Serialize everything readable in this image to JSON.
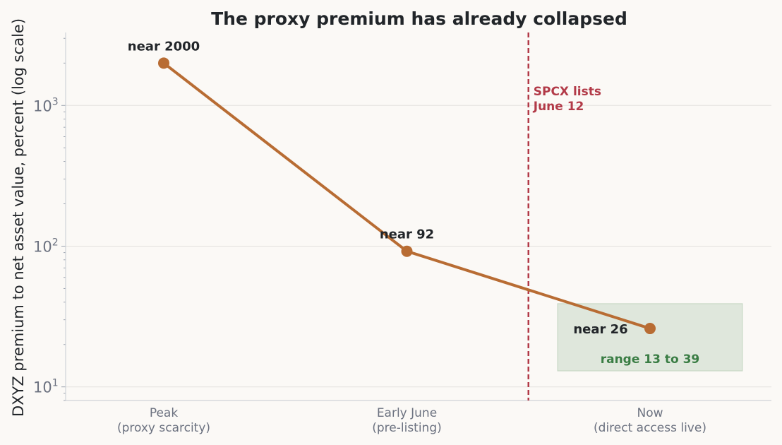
{
  "chart_data": {
    "type": "line",
    "title": "The proxy premium has already collapsed",
    "ylabel": "DXYZ premium to net asset value, percent (log scale)",
    "xlabel": "",
    "categories": [
      "Peak\n(proxy scarcity)",
      "Early June\n(pre-listing)",
      "Now\n(direct access live)"
    ],
    "series": [
      {
        "values": [
          2000,
          92,
          26
        ],
        "color": "#b86c33"
      }
    ],
    "y_scale": "log",
    "ylim": [
      8,
      3300
    ],
    "y_ticks": [
      {
        "base": "10",
        "exp": "1",
        "value": 10
      },
      {
        "base": "10",
        "exp": "2",
        "value": 100
      },
      {
        "base": "10",
        "exp": "3",
        "value": 1000
      }
    ],
    "grid": true,
    "point_labels": [
      "near 2000",
      "near 92",
      "near 26"
    ],
    "event_line": {
      "text_lines": [
        "SPCX lists",
        "June 12"
      ],
      "x_position": 1.5,
      "color": "#b23a48"
    },
    "range_band": {
      "text": "range 13 to 39",
      "low": 13,
      "high": 39,
      "x_from": 1.62,
      "x_to": 2.38,
      "fill": "#dfe7dc",
      "text_color": "#3a7d44"
    }
  }
}
